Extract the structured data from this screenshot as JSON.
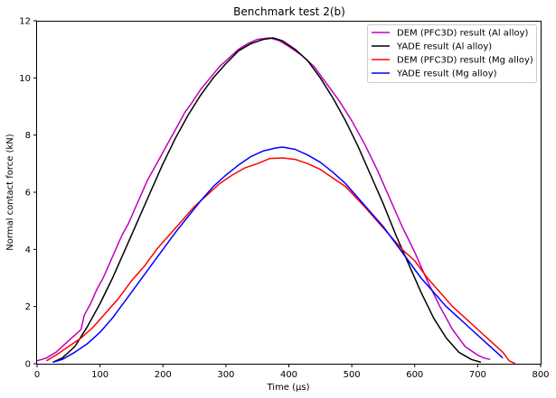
{
  "chart_data": {
    "type": "line",
    "title": "Benchmark test 2(b)",
    "xlabel": "Time (μs)",
    "ylabel": "Normal contact force (kN)",
    "xlim": [
      0,
      800
    ],
    "ylim": [
      0,
      12
    ],
    "xticks": [
      "0",
      "100",
      "200",
      "300",
      "400",
      "500",
      "600",
      "700",
      "800"
    ],
    "yticks": [
      "0",
      "2",
      "4",
      "6",
      "8",
      "10",
      "12"
    ],
    "grid": false,
    "legend_position": "top-right",
    "series": [
      {
        "name": "DEM (PFC3D) result (Al alloy)",
        "color": "#bf00bf",
        "x": [
          0,
          15,
          30,
          45,
          60,
          70,
          75,
          85,
          95,
          105,
          115,
          125,
          135,
          145,
          155,
          165,
          175,
          185,
          195,
          205,
          215,
          225,
          235,
          245,
          260,
          275,
          290,
          305,
          320,
          335,
          350,
          370,
          385,
          400,
          420,
          440,
          460,
          480,
          500,
          520,
          540,
          560,
          580,
          600,
          620,
          640,
          660,
          680,
          700,
          710,
          720
        ],
        "y": [
          0.1,
          0.2,
          0.4,
          0.7,
          1.0,
          1.2,
          1.7,
          2.1,
          2.6,
          3.0,
          3.5,
          4.0,
          4.5,
          4.9,
          5.4,
          5.9,
          6.4,
          6.8,
          7.2,
          7.6,
          8.0,
          8.4,
          8.8,
          9.1,
          9.6,
          10.0,
          10.4,
          10.7,
          11.0,
          11.2,
          11.35,
          11.4,
          11.3,
          11.1,
          10.8,
          10.4,
          9.8,
          9.2,
          8.5,
          7.7,
          6.8,
          5.8,
          4.8,
          3.9,
          2.9,
          2.0,
          1.2,
          0.6,
          0.3,
          0.2,
          0.15
        ]
      },
      {
        "name": "YADE result (Al alloy)",
        "color": "#000000",
        "x": [
          25,
          40,
          60,
          80,
          100,
          120,
          140,
          160,
          180,
          200,
          220,
          240,
          260,
          280,
          300,
          320,
          340,
          360,
          375,
          390,
          410,
          430,
          450,
          470,
          490,
          510,
          530,
          550,
          570,
          590,
          610,
          630,
          650,
          670,
          690,
          705
        ],
        "y": [
          0.05,
          0.2,
          0.6,
          1.3,
          2.1,
          3.0,
          4.0,
          5.0,
          6.0,
          7.0,
          7.9,
          8.7,
          9.4,
          10.0,
          10.5,
          10.95,
          11.2,
          11.35,
          11.4,
          11.3,
          11.0,
          10.6,
          10.0,
          9.3,
          8.5,
          7.6,
          6.6,
          5.6,
          4.5,
          3.5,
          2.5,
          1.6,
          0.9,
          0.4,
          0.15,
          0.05
        ]
      },
      {
        "name": "DEM (PFC3D) result (Mg alloy)",
        "color": "#ff0000",
        "x": [
          15,
          30,
          50,
          70,
          90,
          110,
          130,
          150,
          170,
          190,
          210,
          230,
          250,
          270,
          290,
          310,
          330,
          350,
          370,
          390,
          410,
          430,
          450,
          470,
          490,
          520,
          540,
          560,
          580,
          600,
          620,
          640,
          660,
          680,
          700,
          720,
          740,
          750,
          760
        ],
        "y": [
          0.1,
          0.3,
          0.6,
          0.9,
          1.3,
          1.8,
          2.3,
          2.9,
          3.4,
          4.0,
          4.5,
          5.0,
          5.5,
          5.9,
          6.3,
          6.6,
          6.85,
          7.0,
          7.18,
          7.2,
          7.15,
          7.0,
          6.8,
          6.5,
          6.2,
          5.5,
          5.0,
          4.5,
          4.0,
          3.6,
          3.0,
          2.5,
          2.0,
          1.6,
          1.2,
          0.8,
          0.4,
          0.1,
          0.0
        ]
      },
      {
        "name": "YADE result (Mg alloy)",
        "color": "#0000ff",
        "x": [
          25,
          40,
          60,
          80,
          100,
          120,
          140,
          160,
          180,
          200,
          220,
          240,
          260,
          280,
          300,
          320,
          340,
          360,
          380,
          390,
          410,
          430,
          450,
          470,
          490,
          510,
          530,
          550,
          570,
          590,
          610,
          630,
          650,
          670,
          690,
          710,
          730,
          740
        ],
        "y": [
          0.05,
          0.15,
          0.4,
          0.7,
          1.1,
          1.6,
          2.2,
          2.8,
          3.4,
          4.0,
          4.6,
          5.15,
          5.7,
          6.2,
          6.6,
          6.95,
          7.25,
          7.45,
          7.55,
          7.58,
          7.5,
          7.3,
          7.05,
          6.7,
          6.3,
          5.8,
          5.3,
          4.8,
          4.2,
          3.6,
          3.0,
          2.5,
          2.0,
          1.6,
          1.2,
          0.8,
          0.4,
          0.2
        ]
      }
    ]
  }
}
